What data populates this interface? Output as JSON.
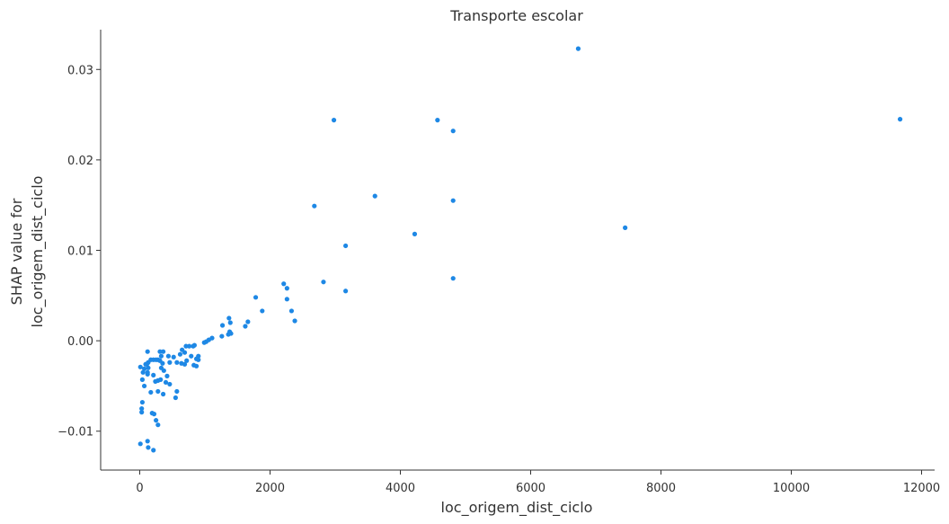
{
  "chart_data": {
    "type": "scatter",
    "title": "Transporte escolar",
    "xlabel": "loc_origem_dist_ciclo",
    "ylabel_lines": [
      "SHAP value for",
      "loc_origem_dist_ciclo"
    ],
    "xlim": [
      -600,
      12200
    ],
    "ylim": [
      -0.0143,
      0.0344
    ],
    "xticks": [
      0,
      2000,
      4000,
      6000,
      8000,
      10000,
      12000
    ],
    "yticks": [
      -0.01,
      0.0,
      0.01,
      0.02,
      0.03
    ],
    "ytick_labels": [
      "−0.01",
      "0.00",
      "0.01",
      "0.02",
      "0.03"
    ],
    "grid": false,
    "color": "#1e88e5",
    "points": [
      [
        6730,
        0.0323
      ],
      [
        11670,
        0.0245
      ],
      [
        2980,
        0.0244
      ],
      [
        4570,
        0.0244
      ],
      [
        4810,
        0.0232
      ],
      [
        3610,
        0.016
      ],
      [
        4810,
        0.0155
      ],
      [
        2680,
        0.0149
      ],
      [
        7450,
        0.0125
      ],
      [
        4220,
        0.0118
      ],
      [
        3160,
        0.0105
      ],
      [
        4810,
        0.0069
      ],
      [
        2820,
        0.0065
      ],
      [
        3160,
        0.0055
      ],
      [
        2210,
        0.0063
      ],
      [
        2260,
        0.0058
      ],
      [
        1780,
        0.0048
      ],
      [
        2260,
        0.0046
      ],
      [
        2330,
        0.0033
      ],
      [
        1880,
        0.0033
      ],
      [
        2380,
        0.0022
      ],
      [
        1370,
        0.0025
      ],
      [
        1390,
        0.002
      ],
      [
        1660,
        0.0021
      ],
      [
        1620,
        0.0016
      ],
      [
        1270,
        0.0017
      ],
      [
        1380,
        0.001
      ],
      [
        1360,
        0.0007
      ],
      [
        1400,
        0.0008
      ],
      [
        1260,
        0.0005
      ],
      [
        1110,
        0.0003
      ],
      [
        1060,
        0.0001
      ],
      [
        1020,
        -0.0001
      ],
      [
        990,
        -0.0002
      ],
      [
        820,
        -0.0006
      ],
      [
        840,
        -0.0005
      ],
      [
        760,
        -0.0006
      ],
      [
        710,
        -0.0006
      ],
      [
        650,
        -0.001
      ],
      [
        690,
        -0.0013
      ],
      [
        620,
        -0.0015
      ],
      [
        790,
        -0.0017
      ],
      [
        900,
        -0.0017
      ],
      [
        870,
        -0.002
      ],
      [
        900,
        -0.0021
      ],
      [
        720,
        -0.0022
      ],
      [
        690,
        -0.0026
      ],
      [
        640,
        -0.0025
      ],
      [
        570,
        -0.0024
      ],
      [
        520,
        -0.0018
      ],
      [
        440,
        -0.0017
      ],
      [
        460,
        -0.0024
      ],
      [
        360,
        -0.0012
      ],
      [
        310,
        -0.0012
      ],
      [
        330,
        -0.0017
      ],
      [
        280,
        -0.0021
      ],
      [
        310,
        -0.0022
      ],
      [
        350,
        -0.0025
      ],
      [
        330,
        -0.003
      ],
      [
        370,
        -0.0033
      ],
      [
        250,
        -0.0021
      ],
      [
        210,
        -0.0021
      ],
      [
        170,
        -0.0021
      ],
      [
        120,
        -0.0012
      ],
      [
        130,
        -0.0024
      ],
      [
        110,
        -0.0026
      ],
      [
        130,
        -0.003
      ],
      [
        90,
        -0.0026
      ],
      [
        70,
        -0.0031
      ],
      [
        50,
        -0.0035
      ],
      [
        120,
        -0.0035
      ],
      [
        120,
        -0.0037
      ],
      [
        10,
        -0.0029
      ],
      [
        830,
        -0.0027
      ],
      [
        870,
        -0.0028
      ],
      [
        210,
        -0.0038
      ],
      [
        40,
        -0.0043
      ],
      [
        280,
        -0.0044
      ],
      [
        320,
        -0.0043
      ],
      [
        240,
        -0.0045
      ],
      [
        420,
        -0.0039
      ],
      [
        400,
        -0.0046
      ],
      [
        460,
        -0.0048
      ],
      [
        70,
        -0.005
      ],
      [
        570,
        -0.0056
      ],
      [
        170,
        -0.0057
      ],
      [
        280,
        -0.0056
      ],
      [
        360,
        -0.0059
      ],
      [
        550,
        -0.0063
      ],
      [
        40,
        -0.0068
      ],
      [
        30,
        -0.0075
      ],
      [
        30,
        -0.0079
      ],
      [
        190,
        -0.008
      ],
      [
        220,
        -0.0081
      ],
      [
        250,
        -0.0088
      ],
      [
        280,
        -0.0093
      ],
      [
        10,
        -0.0114
      ],
      [
        120,
        -0.0111
      ],
      [
        130,
        -0.0118
      ],
      [
        210,
        -0.0121
      ]
    ]
  }
}
